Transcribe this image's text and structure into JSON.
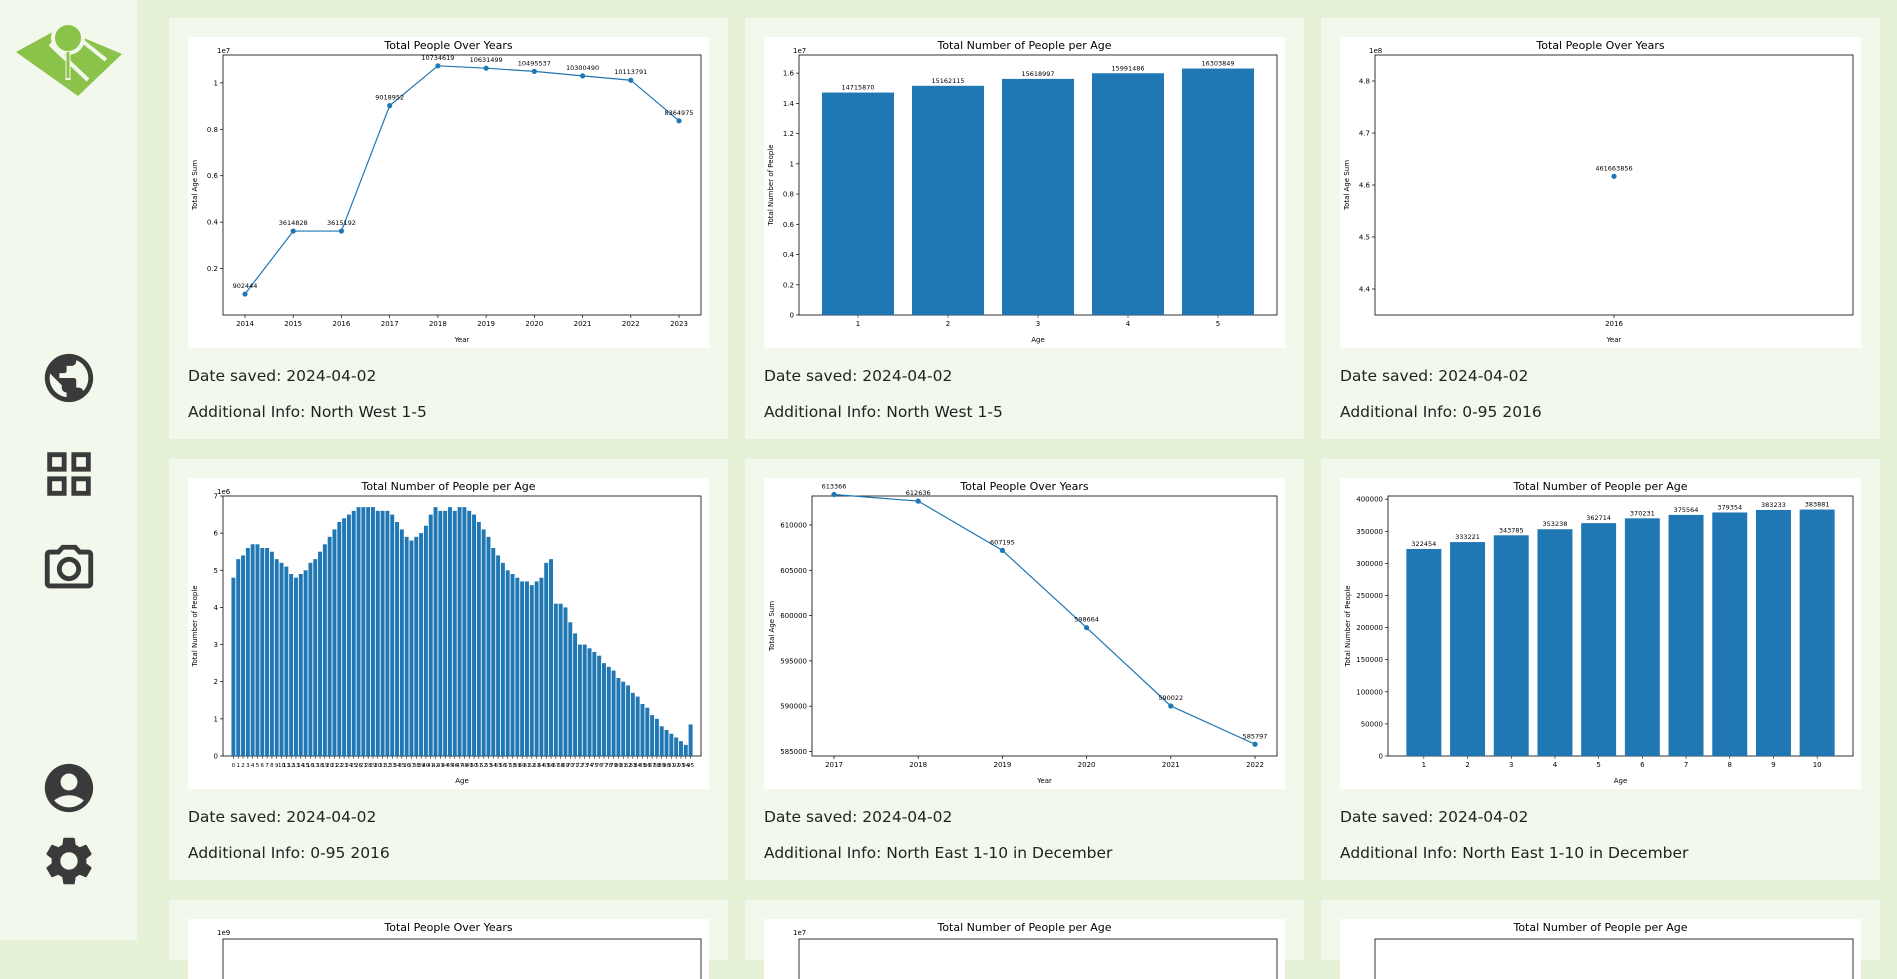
{
  "app": {
    "colors": {
      "accent": "#8bc34a",
      "page_bg": "#e6f2d8",
      "card_bg": "#f2f8eb",
      "icon": "#3a3a3a",
      "series": "#1f77b4"
    }
  },
  "sidebar": {
    "logo": "map-pin-logo",
    "items": [
      {
        "icon": "globe-icon"
      },
      {
        "icon": "dashboard-icon"
      },
      {
        "icon": "camera-icon"
      },
      {
        "icon": "account-icon"
      },
      {
        "icon": "settings-icon"
      }
    ]
  },
  "cards": [
    {
      "date_label": "Date saved: 2024-04-02",
      "info_label": "Additional Info: North West 1-5"
    },
    {
      "date_label": "Date saved: 2024-04-02",
      "info_label": "Additional Info: North West 1-5"
    },
    {
      "date_label": "Date saved: 2024-04-02",
      "info_label": "Additional Info: 0-95 2016"
    },
    {
      "date_label": "Date saved: 2024-04-02",
      "info_label": "Additional Info: 0-95 2016"
    },
    {
      "date_label": "Date saved: 2024-04-02",
      "info_label": "Additional Info: North East 1-10 in December"
    },
    {
      "date_label": "Date saved: 2024-04-02",
      "info_label": "Additional Info: North East 1-10 in December"
    }
  ],
  "chart_data": [
    {
      "type": "line",
      "title": "Total People Over Years",
      "xlabel": "Year",
      "ylabel": "Total Age Sum",
      "scale_label": "1e7",
      "scale": 10000000,
      "x": [
        2014,
        2015,
        2016,
        2017,
        2018,
        2019,
        2020,
        2021,
        2022,
        2023
      ],
      "values": [
        902444,
        3614828,
        3615192,
        9018952,
        10734619,
        10631499,
        10495537,
        10300490,
        10113791,
        8364975
      ],
      "labels": [
        "902444",
        "3614828",
        "3615192",
        "9018952",
        "10734619",
        "10631499",
        "10495537",
        "10300490",
        "10113791",
        "8364975"
      ],
      "ylim": [
        0,
        11200000
      ],
      "yticks": [
        0.2,
        0.4,
        0.6,
        0.8,
        1.0
      ]
    },
    {
      "type": "bar",
      "title": "Total Number of People per Age",
      "xlabel": "Age",
      "ylabel": "Total Number of People",
      "scale_label": "1e7",
      "scale": 10000000,
      "categories": [
        "1",
        "2",
        "3",
        "4",
        "5"
      ],
      "values": [
        14715870,
        15162115,
        15618997,
        15991486,
        16303849
      ],
      "labels": [
        "14715870",
        "15162115",
        "15618997",
        "15991486",
        "16303849"
      ],
      "ylim": [
        0,
        17200000
      ],
      "yticks": [
        0.0,
        0.2,
        0.4,
        0.6,
        0.8,
        1.0,
        1.2,
        1.4,
        1.6
      ]
    },
    {
      "type": "scatter",
      "title": "Total People Over Years",
      "xlabel": "Year",
      "ylabel": "Total Age Sum",
      "scale_label": "1e8",
      "scale": 100000000,
      "x": [
        2016
      ],
      "values": [
        461663856
      ],
      "labels": [
        "461663856"
      ],
      "ylim": [
        435000000,
        485000000
      ],
      "yticks": [
        4.4,
        4.5,
        4.6,
        4.7,
        4.8
      ]
    },
    {
      "type": "bar",
      "title": "Total Number of People per Age",
      "xlabel": "Age",
      "ylabel": "Total Number of People",
      "scale_label": "1e6",
      "scale": 1000000,
      "categories": [
        "0",
        "1",
        "2",
        "3",
        "4",
        "5",
        "6",
        "7",
        "8",
        "9",
        "10",
        "11",
        "12",
        "13",
        "14",
        "15",
        "16",
        "17",
        "18",
        "19",
        "20",
        "21",
        "22",
        "23",
        "24",
        "25",
        "26",
        "27",
        "28",
        "29",
        "30",
        "31",
        "32",
        "33",
        "34",
        "35",
        "36",
        "37",
        "38",
        "39",
        "40",
        "41",
        "42",
        "43",
        "44",
        "45",
        "46",
        "47",
        "48",
        "49",
        "50",
        "51",
        "52",
        "53",
        "54",
        "55",
        "56",
        "57",
        "58",
        "59",
        "60",
        "61",
        "62",
        "63",
        "64",
        "65",
        "66",
        "67",
        "68",
        "69",
        "70",
        "71",
        "72",
        "73",
        "74",
        "75",
        "76",
        "77",
        "78",
        "79",
        "80",
        "81",
        "82",
        "83",
        "84",
        "85",
        "86",
        "87",
        "88",
        "89",
        "90",
        "91",
        "92",
        "93",
        "94",
        "95"
      ],
      "values": [
        4800000,
        5300000,
        5400000,
        5600000,
        5700000,
        5700000,
        5600000,
        5600000,
        5500000,
        5300000,
        5200000,
        5100000,
        4900000,
        4800000,
        4900000,
        5000000,
        5200000,
        5300000,
        5500000,
        5700000,
        5900000,
        6100000,
        6300000,
        6400000,
        6500000,
        6600000,
        6700000,
        6700000,
        6700000,
        6700000,
        6600000,
        6600000,
        6600000,
        6500000,
        6300000,
        6100000,
        5900000,
        5800000,
        5900000,
        6000000,
        6200000,
        6500000,
        6700000,
        6600000,
        6600000,
        6700000,
        6600000,
        6700000,
        6700000,
        6600000,
        6500000,
        6300000,
        6100000,
        5900000,
        5600000,
        5400000,
        5200000,
        5000000,
        4900000,
        4800000,
        4700000,
        4700000,
        4600000,
        4700000,
        4800000,
        5200000,
        5300000,
        4100000,
        4100000,
        4000000,
        3600000,
        3300000,
        3000000,
        3000000,
        2900000,
        2800000,
        2700000,
        2500000,
        2400000,
        2300000,
        2100000,
        2000000,
        1900000,
        1700000,
        1600000,
        1400000,
        1300000,
        1100000,
        1000000,
        800000,
        700000,
        600000,
        500000,
        400000,
        300000,
        850000
      ],
      "ylim": [
        0,
        7000000
      ],
      "yticks": [
        0,
        1,
        2,
        3,
        4,
        5,
        6,
        7
      ]
    },
    {
      "type": "line",
      "title": "Total People Over Years",
      "xlabel": "Year",
      "ylabel": "Total Age Sum",
      "x": [
        2017,
        2018,
        2019,
        2020,
        2021,
        2022
      ],
      "values": [
        613366,
        612636,
        607195,
        598664,
        590022,
        585797
      ],
      "labels": [
        "613366",
        "612636",
        "607195",
        "598664",
        "590022",
        "585797"
      ],
      "ylim": [
        584500,
        613200
      ],
      "yticks": [
        585000,
        590000,
        595000,
        600000,
        605000,
        610000
      ]
    },
    {
      "type": "bar",
      "title": "Total Number of People per Age",
      "xlabel": "Age",
      "ylabel": "Total Number of People",
      "categories": [
        "1",
        "2",
        "3",
        "4",
        "5",
        "6",
        "7",
        "8",
        "9",
        "10"
      ],
      "values": [
        322454,
        333221,
        343785,
        353238,
        362714,
        370231,
        375564,
        379354,
        383233,
        383881
      ],
      "labels": [
        "322454",
        "333221",
        "343785",
        "353238",
        "362714",
        "370231",
        "375564",
        "379354",
        "383233",
        "383881"
      ],
      "ylim": [
        0,
        405000
      ],
      "yticks": [
        0,
        50000,
        100000,
        150000,
        200000,
        250000,
        300000,
        350000,
        400000
      ]
    },
    {
      "type": "line",
      "title": "Total People Over Years",
      "scale_label": "1e9"
    },
    {
      "type": "bar",
      "title": "Total Number of People per Age",
      "scale_label": "1e7"
    },
    {
      "type": "bar",
      "title": "Total Number of People per Age"
    }
  ]
}
